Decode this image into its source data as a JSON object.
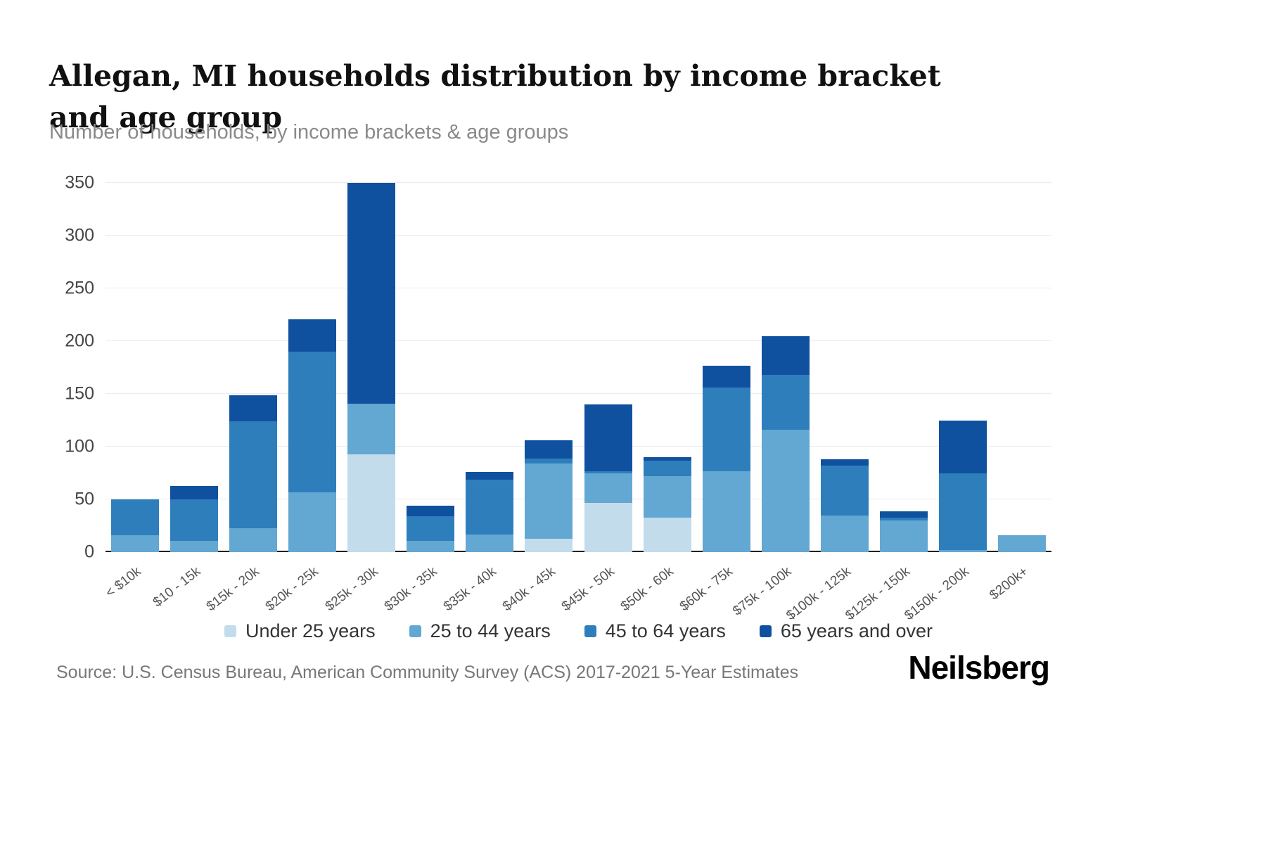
{
  "title": "Allegan, MI households distribution by income bracket and age group",
  "subtitle": "Number of households, by income brackets & age groups",
  "source": "Source: U.S. Census Bureau, American Community Survey (ACS) 2017-2021 5-Year Estimates",
  "brand": "Neilsberg",
  "chart_data": {
    "type": "bar",
    "stacked": true,
    "title": "Allegan, MI households distribution by income bracket and age group",
    "subtitle": "Number of households, by income brackets & age groups",
    "xlabel": "",
    "ylabel": "Number of households",
    "ylim": [
      0,
      350
    ],
    "yticks": [
      0,
      50,
      100,
      150,
      200,
      250,
      300,
      350
    ],
    "grid": true,
    "legend_position": "bottom",
    "categories": [
      "< $10k",
      "$10 - 15k",
      "$15k - 20k",
      "$20k - 25k",
      "$25k - 30k",
      "$30k - 35k",
      "$35k - 40k",
      "$40k - 45k",
      "$45k - 50k",
      "$50k - 60k",
      "$60k - 75k",
      "$75k - 100k",
      "$100k - 125k",
      "$125k - 150k",
      "$150k - 200k",
      "$200k+"
    ],
    "series": [
      {
        "name": "Under 25 years",
        "color": "#c3dcec",
        "values": [
          0,
          0,
          0,
          0,
          93,
          0,
          0,
          13,
          47,
          33,
          0,
          0,
          0,
          0,
          0,
          0
        ]
      },
      {
        "name": "25 to 44 years",
        "color": "#63a7d3",
        "values": [
          16,
          11,
          23,
          57,
          48,
          11,
          17,
          71,
          28,
          39,
          77,
          116,
          35,
          30,
          2,
          16
        ]
      },
      {
        "name": "45 to 64 years",
        "color": "#2e7ebc",
        "values": [
          34,
          39,
          101,
          133,
          0,
          23,
          52,
          5,
          2,
          15,
          79,
          52,
          47,
          3,
          73,
          0
        ]
      },
      {
        "name": "65 years and over",
        "color": "#10519f",
        "values": [
          0,
          13,
          25,
          31,
          209,
          10,
          7,
          17,
          63,
          3,
          21,
          37,
          6,
          6,
          50,
          0
        ]
      }
    ]
  }
}
